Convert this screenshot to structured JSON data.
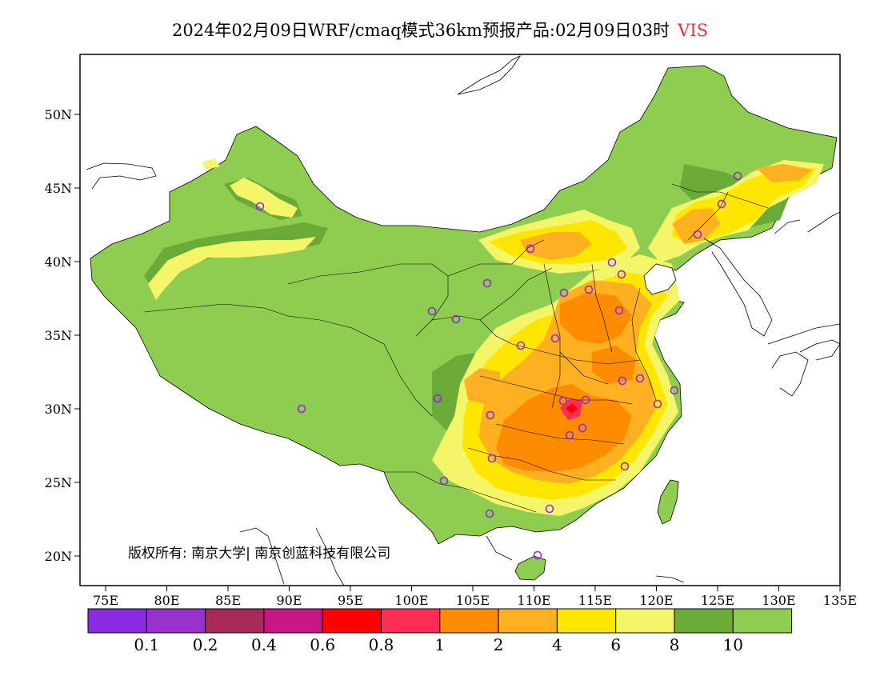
{
  "title": "2024年02月09日WRF/cmaq模式36km预报产品:02月09日03时",
  "variable": "VIS",
  "copyright": "版权所有: 南京大学| 南京创蓝科技有限公司",
  "axes": {
    "lat_ticks": [
      "50N",
      "45N",
      "40N",
      "35N",
      "30N",
      "25N",
      "20N"
    ],
    "lon_ticks": [
      "75E",
      "80E",
      "85E",
      "90E",
      "95E",
      "100E",
      "105E",
      "110E",
      "115E",
      "120E",
      "125E",
      "130E",
      "135E"
    ]
  },
  "legend": {
    "colors": [
      "#8a2be2",
      "#9932cc",
      "#a52a5a",
      "#c71585",
      "#ff0000",
      "#ff2d55",
      "#ff8c00",
      "#ffb020",
      "#ffe600",
      "#f5f56a",
      "#6aaa37",
      "#8fcd50"
    ],
    "labels": [
      "0.1",
      "0.2",
      "0.4",
      "0.6",
      "0.8",
      "1",
      "2",
      "4",
      "6",
      "8",
      "10"
    ]
  },
  "map": {
    "background_color": "#8fcd50",
    "ocean_color": "#ffffff",
    "station_marker_color": "#8a2be2"
  }
}
